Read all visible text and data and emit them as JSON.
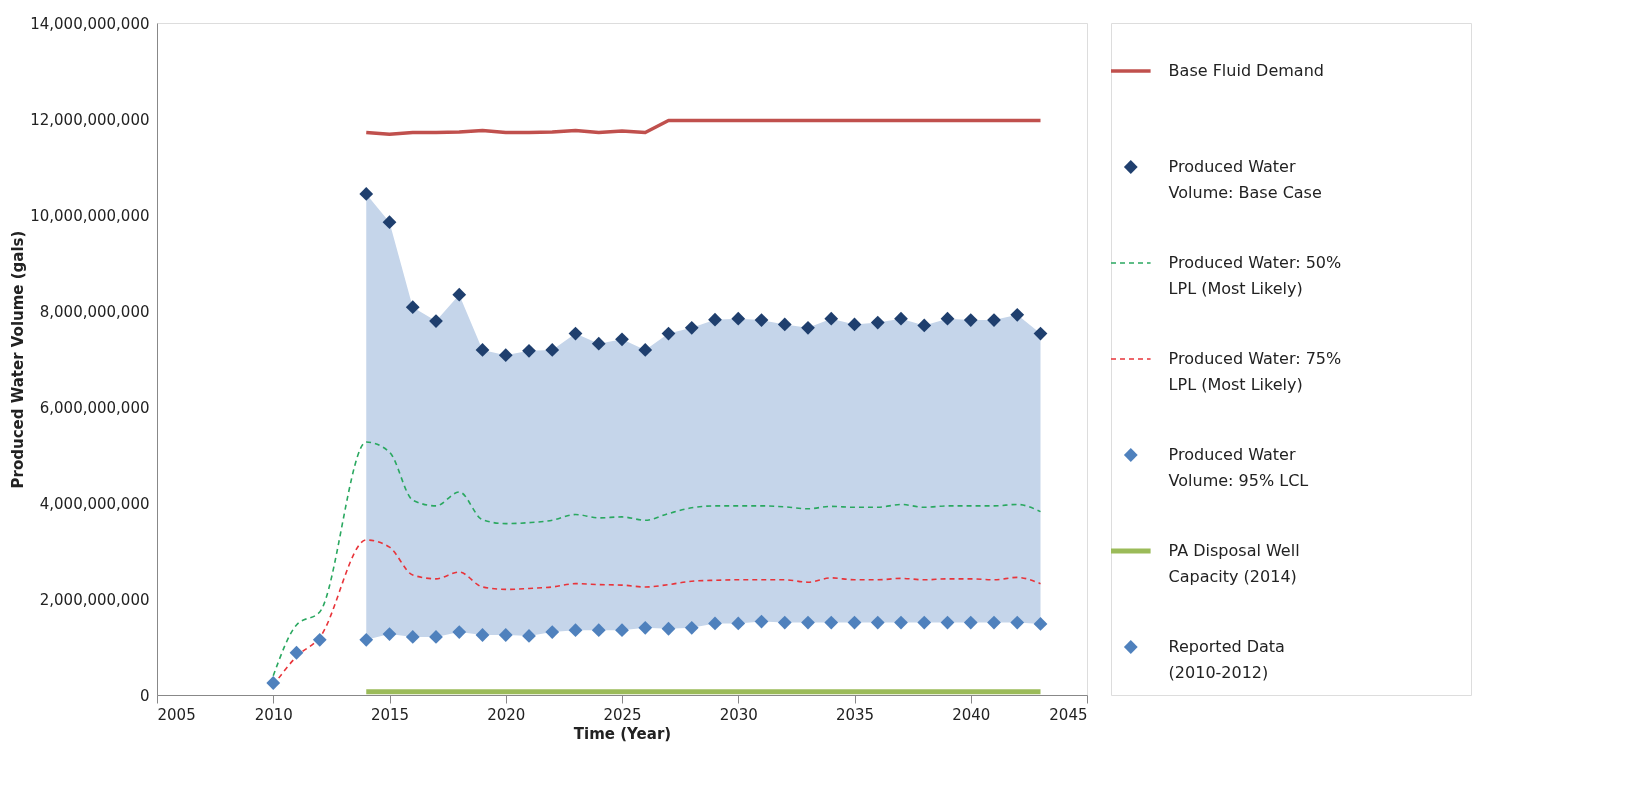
{
  "chart_data": {
    "type": "line",
    "xlabel": "Time (Year)",
    "ylabel": "Produced Water Volume (gals)",
    "xlim": [
      2005,
      2045
    ],
    "xticks": [
      2005,
      2010,
      2015,
      2020,
      2025,
      2030,
      2035,
      2040,
      2045
    ],
    "ylim": [
      0,
      14000000000
    ],
    "yticks": [
      0,
      {
        "value": 2000000000,
        "label": "2,000,000,000"
      },
      {
        "value": 4000000000,
        "label": "4,000,000,000"
      },
      {
        "value": 6000000000,
        "label": "6,000,000,000"
      },
      {
        "value": 8000000000,
        "label": "8,000,000,000"
      },
      {
        "value": 10000000000,
        "label": "10,000,000,000"
      },
      {
        "value": 12000000000,
        "label": "12,000,000,000"
      },
      {
        "value": 14000000000,
        "label": "14,000,000,000"
      }
    ],
    "grid": false,
    "legend": "right",
    "series": [
      {
        "name": "Base Fluid Demand",
        "line_style": "solid",
        "color": "#c0504d",
        "x": [
          2014,
          2015,
          2016,
          2017,
          2018,
          2019,
          2020,
          2021,
          2022,
          2023,
          2024,
          2025,
          2026,
          2027,
          2028,
          2029,
          2030,
          2031,
          2032,
          2033,
          2034,
          2035,
          2036,
          2037,
          2038,
          2039,
          2040,
          2041,
          2042,
          2043
        ],
        "values": [
          11720000000,
          11680000000,
          11720000000,
          11720000000,
          11730000000,
          11760000000,
          11720000000,
          11720000000,
          11730000000,
          11760000000,
          11720000000,
          11750000000,
          11720000000,
          11970000000,
          11970000000,
          11970000000,
          11970000000,
          11970000000,
          11970000000,
          11970000000,
          11970000000,
          11970000000,
          11970000000,
          11970000000,
          11970000000,
          11970000000,
          11970000000,
          11970000000,
          11970000000,
          11970000000
        ]
      },
      {
        "name": "Produced Water Volume: Base Case",
        "type": "scatter",
        "marker": "diamond",
        "color": "#1f3f6e",
        "x": [
          2014,
          2015,
          2016,
          2017,
          2018,
          2019,
          2020,
          2021,
          2022,
          2023,
          2024,
          2025,
          2026,
          2027,
          2028,
          2029,
          2030,
          2031,
          2032,
          2033,
          2034,
          2035,
          2036,
          2037,
          2038,
          2039,
          2040,
          2041,
          2042,
          2043
        ],
        "values": [
          10440000000,
          9850000000,
          8080000000,
          7790000000,
          8340000000,
          7190000000,
          7080000000,
          7170000000,
          7190000000,
          7530000000,
          7320000000,
          7410000000,
          7190000000,
          7530000000,
          7650000000,
          7820000000,
          7840000000,
          7810000000,
          7720000000,
          7650000000,
          7840000000,
          7720000000,
          7760000000,
          7840000000,
          7700000000,
          7840000000,
          7810000000,
          7810000000,
          7920000000,
          7530000000
        ],
        "lower": [
          1150000000,
          1270000000,
          1210000000,
          1210000000,
          1310000000,
          1250000000,
          1250000000,
          1230000000,
          1310000000,
          1350000000,
          1350000000,
          1350000000,
          1400000000,
          1380000000,
          1400000000,
          1490000000,
          1490000000,
          1530000000,
          1510000000,
          1510000000,
          1510000000,
          1510000000,
          1510000000,
          1510000000,
          1510000000,
          1510000000,
          1510000000,
          1510000000,
          1510000000,
          1480000000
        ],
        "upper": [
          10440000000,
          9850000000,
          8080000000,
          7790000000,
          8340000000,
          7190000000,
          7080000000,
          7170000000,
          7190000000,
          7530000000,
          7320000000,
          7410000000,
          7190000000,
          7530000000,
          7650000000,
          7820000000,
          7840000000,
          7810000000,
          7720000000,
          7650000000,
          7840000000,
          7720000000,
          7760000000,
          7840000000,
          7700000000,
          7840000000,
          7810000000,
          7810000000,
          7920000000,
          7530000000
        ]
      },
      {
        "name": "Produced Water: 50% LPL (Most Likely)",
        "line_style": "dashed",
        "color": "#2aa860",
        "x": [
          2010,
          2011,
          2012,
          2014,
          2015,
          2016,
          2017,
          2018,
          2019,
          2020,
          2021,
          2022,
          2023,
          2024,
          2025,
          2026,
          2027,
          2028,
          2029,
          2030,
          2031,
          2032,
          2033,
          2034,
          2035,
          2036,
          2037,
          2038,
          2039,
          2040,
          2041,
          2042,
          2043
        ],
        "values": [
          400000000,
          1460000000,
          1730000000,
          5270000000,
          5060000000,
          4060000000,
          3940000000,
          4230000000,
          3650000000,
          3570000000,
          3590000000,
          3640000000,
          3760000000,
          3690000000,
          3710000000,
          3640000000,
          3780000000,
          3900000000,
          3940000000,
          3940000000,
          3940000000,
          3920000000,
          3880000000,
          3930000000,
          3910000000,
          3910000000,
          3970000000,
          3910000000,
          3940000000,
          3940000000,
          3940000000,
          3970000000,
          3820000000
        ]
      },
      {
        "name": "Produced Water: 75% LPL (Most Likely)",
        "line_style": "dashed",
        "color": "#e8343a",
        "x": [
          2010,
          2011,
          2012,
          2014,
          2015,
          2016,
          2017,
          2018,
          2019,
          2020,
          2021,
          2022,
          2023,
          2024,
          2025,
          2026,
          2027,
          2028,
          2029,
          2030,
          2031,
          2032,
          2033,
          2034,
          2035,
          2036,
          2037,
          2038,
          2039,
          2040,
          2041,
          2042,
          2043
        ],
        "values": [
          200000000,
          800000000,
          1200000000,
          3230000000,
          3080000000,
          2500000000,
          2420000000,
          2560000000,
          2250000000,
          2200000000,
          2220000000,
          2250000000,
          2320000000,
          2300000000,
          2290000000,
          2250000000,
          2300000000,
          2370000000,
          2390000000,
          2400000000,
          2400000000,
          2400000000,
          2350000000,
          2440000000,
          2400000000,
          2400000000,
          2430000000,
          2400000000,
          2420000000,
          2420000000,
          2400000000,
          2450000000,
          2320000000
        ]
      },
      {
        "name": "Produced Water Volume: 95% LCL",
        "type": "scatter",
        "marker": "diamond",
        "color": "#4f81bd",
        "x": [
          2014,
          2015,
          2016,
          2017,
          2018,
          2019,
          2020,
          2021,
          2022,
          2023,
          2024,
          2025,
          2026,
          2027,
          2028,
          2029,
          2030,
          2031,
          2032,
          2033,
          2034,
          2035,
          2036,
          2037,
          2038,
          2039,
          2040,
          2041,
          2042,
          2043
        ],
        "values": [
          1150000000,
          1270000000,
          1210000000,
          1210000000,
          1310000000,
          1250000000,
          1250000000,
          1230000000,
          1310000000,
          1350000000,
          1350000000,
          1350000000,
          1400000000,
          1380000000,
          1400000000,
          1490000000,
          1490000000,
          1530000000,
          1510000000,
          1510000000,
          1510000000,
          1510000000,
          1510000000,
          1510000000,
          1510000000,
          1510000000,
          1510000000,
          1510000000,
          1510000000,
          1480000000
        ]
      },
      {
        "name": "PA Disposal Well Capacity (2014)",
        "line_style": "solid",
        "color": "#9bbb59",
        "x": [
          2014,
          2043
        ],
        "values": [
          70000000,
          70000000
        ]
      },
      {
        "name": "Reported Data (2010-2012)",
        "type": "scatter",
        "marker": "diamond",
        "color": "#4f81bd",
        "x": [
          2010,
          2011,
          2012
        ],
        "values": [
          250000000,
          880000000,
          1150000000
        ]
      }
    ]
  }
}
